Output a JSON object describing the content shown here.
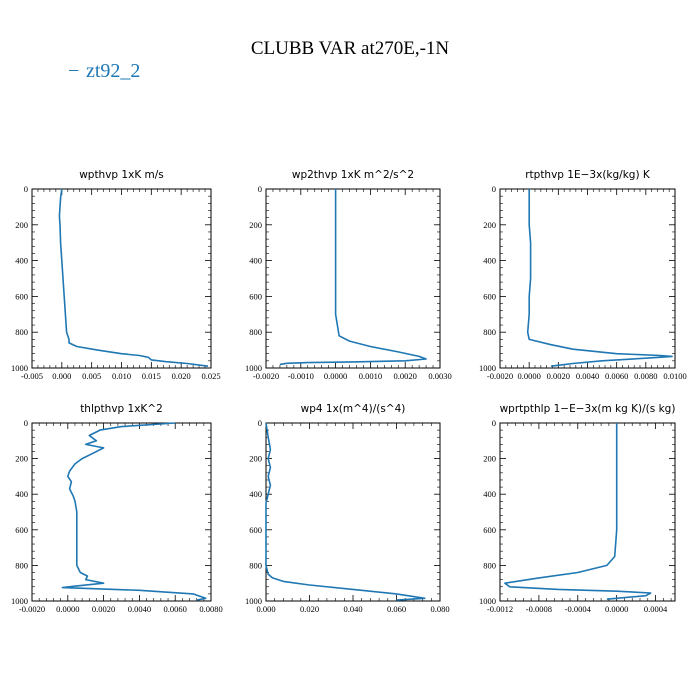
{
  "figure": {
    "title": "CLUBB VAR at270E,-1N",
    "legend": {
      "line_marker": "−",
      "label": "zt92_2",
      "color": "#1f77b4"
    },
    "line_color": "#1f77b4"
  },
  "chart_data": [
    {
      "type": "line",
      "title": "wpthvp  1xK m/s",
      "xlabel": "",
      "ylabel": "",
      "xlim": [
        -0.005,
        0.025
      ],
      "ylim": [
        1000,
        0
      ],
      "grid": false,
      "xticks": [
        -0.005,
        0.0,
        0.005,
        0.01,
        0.015,
        0.02,
        0.025
      ],
      "xticklabels": [
        "-0.005",
        "0.000",
        "0.005",
        "0.010",
        "0.015",
        "0.020",
        "0.025"
      ],
      "yticks": [
        0,
        200,
        400,
        600,
        800,
        1000
      ],
      "yticklabels": [
        "0",
        "200",
        "400",
        "600",
        "800",
        "1000"
      ],
      "series": [
        {
          "x": [
            0.0,
            -0.0002,
            -0.0003,
            -0.0004,
            -0.0003,
            -0.0002,
            0.0,
            0.0002,
            0.0004,
            0.0006,
            0.0008,
            0.001,
            0.0012,
            0.0012,
            0.0025,
            0.006,
            0.01,
            0.013,
            0.0145,
            0.015,
            0.0175,
            0.021,
            0.0245
          ],
          "y": [
            0,
            50,
            100,
            150,
            200,
            300,
            400,
            500,
            600,
            700,
            800,
            820,
            840,
            860,
            880,
            900,
            920,
            930,
            940,
            955,
            965,
            975,
            990
          ]
        }
      ]
    },
    {
      "type": "line",
      "title": "wp2thvp  1xK m^2/s^2",
      "xlabel": "",
      "ylabel": "",
      "xlim": [
        -0.002,
        0.003
      ],
      "ylim": [
        1000,
        0
      ],
      "grid": false,
      "xticks": [
        -0.002,
        -0.001,
        0.0,
        0.001,
        0.002,
        0.003
      ],
      "xticklabels": [
        "-0.0020",
        "-0.0010",
        "0.0000",
        "0.0010",
        "0.0020",
        "0.0030"
      ],
      "yticks": [
        0,
        200,
        400,
        600,
        800,
        1000
      ],
      "yticklabels": [
        "0",
        "200",
        "400",
        "600",
        "800",
        "1000"
      ],
      "series": [
        {
          "x": [
            0.0,
            0.0,
            0.0,
            0.0,
            0.0,
            0.0,
            0.0,
            0.0,
            0.0001,
            0.0004,
            0.001,
            0.0018,
            0.0024,
            0.0026,
            0.002,
            0.0005,
            -0.0008,
            -0.0014,
            -0.0016
          ],
          "y": [
            0,
            100,
            200,
            300,
            400,
            500,
            600,
            700,
            820,
            850,
            880,
            910,
            935,
            950,
            960,
            966,
            970,
            974,
            980
          ]
        }
      ]
    },
    {
      "type": "line",
      "title": "rtpthvp  1E−3x(kg/kg) K",
      "xlabel": "",
      "ylabel": "",
      "xlim": [
        -0.002,
        0.01
      ],
      "ylim": [
        1000,
        0
      ],
      "grid": false,
      "xticks": [
        -0.002,
        0.0,
        0.002,
        0.004,
        0.006,
        0.008,
        0.01
      ],
      "xticklabels": [
        "-0.0020",
        "0.0000",
        "0.0020",
        "0.0040",
        "0.0060",
        "0.0080",
        "0.0100"
      ],
      "yticks": [
        0,
        200,
        400,
        600,
        800,
        1000
      ],
      "yticklabels": [
        "0",
        "200",
        "400",
        "600",
        "800",
        "1000"
      ],
      "series": [
        {
          "x": [
            0.0,
            0.0,
            0.0,
            0.0001,
            0.0001,
            0.0001,
            0.0,
            0.0,
            -0.0001,
            0.0,
            0.0015,
            0.003,
            0.006,
            0.009,
            0.0098,
            0.008,
            0.005,
            0.003,
            0.0015
          ],
          "y": [
            0,
            100,
            200,
            300,
            400,
            500,
            600,
            700,
            800,
            840,
            870,
            895,
            920,
            930,
            935,
            945,
            960,
            975,
            990
          ]
        }
      ]
    },
    {
      "type": "line",
      "title": "thlpthvp  1xK^2",
      "xlabel": "",
      "ylabel": "",
      "xlim": [
        -0.002,
        0.008
      ],
      "ylim": [
        1000,
        0
      ],
      "grid": false,
      "xticks": [
        -0.002,
        0.0,
        0.002,
        0.004,
        0.006,
        0.008
      ],
      "xticklabels": [
        "-0.0020",
        "0.0000",
        "0.0020",
        "0.0040",
        "0.0060",
        "0.0080"
      ],
      "yticks": [
        0,
        200,
        400,
        600,
        800,
        1000
      ],
      "yticklabels": [
        "0",
        "200",
        "400",
        "600",
        "800",
        "1000"
      ],
      "series": [
        {
          "x": [
            0.006,
            0.003,
            0.0018,
            0.0012,
            0.0016,
            0.001,
            0.002,
            0.0014,
            0.0008,
            0.0004,
            0.0001,
            0.0,
            0.0002,
            0.0001,
            0.0003,
            0.0004,
            0.0005,
            0.0005,
            0.0005,
            0.0005,
            0.0007,
            0.0011,
            0.001,
            0.002,
            0.0005,
            -0.0003,
            0.004,
            0.007,
            0.0077,
            0.0072
          ],
          "y": [
            0,
            20,
            40,
            70,
            100,
            120,
            140,
            170,
            200,
            230,
            270,
            300,
            330,
            370,
            410,
            440,
            500,
            600,
            700,
            800,
            840,
            860,
            880,
            900,
            915,
            925,
            940,
            960,
            985,
            995
          ]
        }
      ]
    },
    {
      "type": "line",
      "title": "wp4  1x(m^4)/(s^4)",
      "xlabel": "",
      "ylabel": "",
      "xlim": [
        0.0,
        0.08
      ],
      "ylim": [
        1000,
        0
      ],
      "grid": false,
      "xticks": [
        0.0,
        0.02,
        0.04,
        0.06,
        0.08
      ],
      "xticklabels": [
        "0.000",
        "0.020",
        "0.040",
        "0.060",
        "0.080"
      ],
      "yticks": [
        0,
        200,
        400,
        600,
        800,
        1000
      ],
      "yticklabels": [
        "0",
        "200",
        "400",
        "600",
        "800",
        "1000"
      ],
      "series": [
        {
          "x": [
            0.0,
            0.001,
            0.002,
            0.001,
            0.002,
            0.001,
            0.002,
            0.001,
            0.0,
            0.0,
            0.0,
            0.0,
            0.0,
            0.001,
            0.003,
            0.008,
            0.02,
            0.04,
            0.06,
            0.073,
            0.06
          ],
          "y": [
            0,
            80,
            150,
            200,
            250,
            300,
            350,
            400,
            450,
            500,
            600,
            700,
            800,
            850,
            870,
            890,
            910,
            935,
            960,
            985,
            995
          ]
        }
      ]
    },
    {
      "type": "line",
      "title": "wprtpthlp  1−E−3x(m kg K)/(s kg)",
      "xlabel": "",
      "ylabel": "",
      "xlim": [
        -0.0012,
        0.0006
      ],
      "ylim": [
        1000,
        0
      ],
      "grid": false,
      "xticks": [
        -0.0012,
        -0.0008,
        -0.0004,
        0.0,
        0.0004
      ],
      "xticklabels": [
        "-0.0012",
        "-0.0008",
        "-0.0004",
        "0.0000",
        "0.0004"
      ],
      "yticks": [
        0,
        200,
        400,
        600,
        800,
        1000
      ],
      "yticklabels": [
        "0",
        "200",
        "400",
        "600",
        "800",
        "1000"
      ],
      "series": [
        {
          "x": [
            0.0,
            0.0,
            0.0,
            0.0,
            0.0,
            0.0,
            0.0,
            -2e-05,
            -0.0001,
            -0.0004,
            -0.0008,
            -0.00115,
            -0.0011,
            -0.0006,
            0.0,
            0.00035,
            0.0003,
            -0.0001
          ],
          "y": [
            0,
            100,
            200,
            300,
            400,
            500,
            600,
            750,
            800,
            840,
            870,
            900,
            920,
            935,
            945,
            955,
            970,
            990
          ]
        }
      ]
    }
  ]
}
